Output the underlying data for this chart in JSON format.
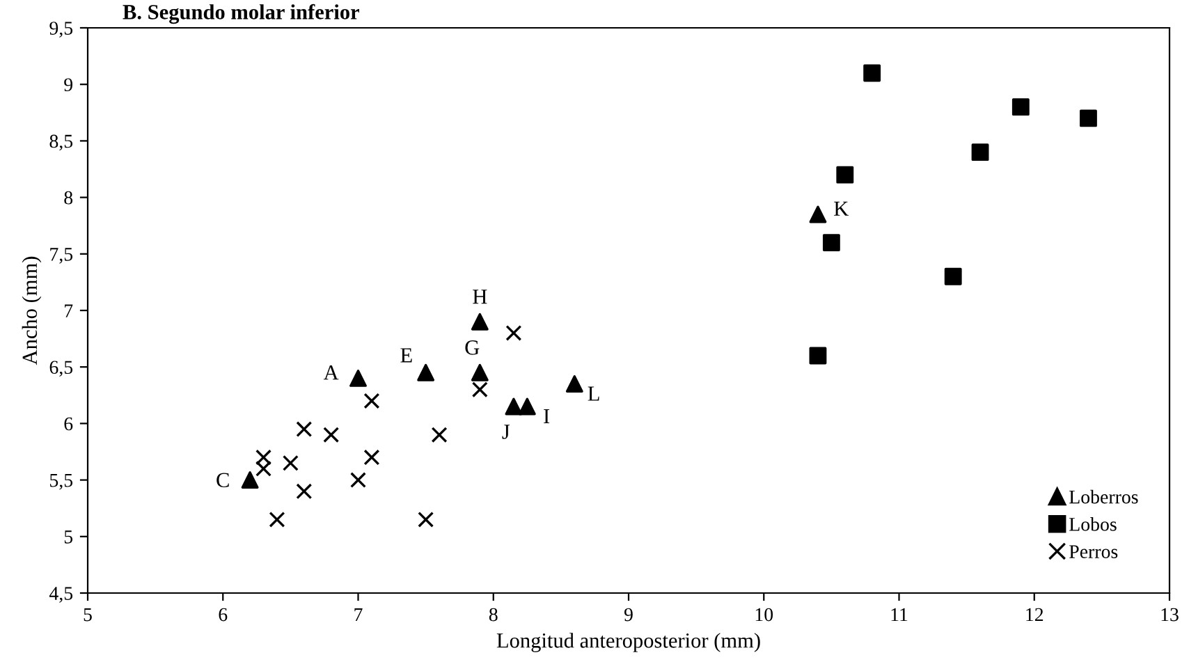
{
  "chart_data": {
    "type": "scatter",
    "title": "B. Segundo molar inferior",
    "xlabel": "Longitud anteroposterior (mm)",
    "ylabel": "Ancho (mm)",
    "xlim": [
      5,
      13
    ],
    "xticks": [
      5,
      6,
      7,
      8,
      9,
      10,
      11,
      12,
      13
    ],
    "ylim": [
      4.5,
      9.5
    ],
    "yticks": [
      {
        "value": 4.5,
        "label": "4,5"
      },
      5,
      {
        "value": 5.5,
        "label": "5,5"
      },
      6,
      {
        "value": 6.5,
        "label": "6,5"
      },
      7,
      {
        "value": 7.5,
        "label": "7,5"
      },
      8,
      {
        "value": 8.5,
        "label": "8,5"
      },
      9,
      {
        "value": 9.5,
        "label": "9,5"
      }
    ],
    "grid": false,
    "legend": "bottom right",
    "series": [
      {
        "name": "Loberros",
        "color": "#000000",
        "marker": "triangle",
        "x": [
          7.0,
          6.2,
          7.5,
          7.9,
          7.9,
          8.25,
          8.15,
          10.4,
          8.6
        ],
        "values": [
          6.4,
          5.5,
          6.45,
          6.45,
          6.9,
          6.15,
          6.15,
          7.85,
          6.35
        ]
      },
      {
        "name": "Lobos",
        "color": "#000000",
        "marker": "square",
        "x": [
          10.8,
          11.9,
          12.4,
          11.6,
          10.6,
          10.5,
          11.4,
          10.4
        ],
        "values": [
          9.1,
          8.8,
          8.7,
          8.4,
          8.2,
          7.6,
          7.3,
          6.6
        ]
      },
      {
        "name": "Perros",
        "color": "#000000",
        "marker": "cross",
        "x": [
          6.3,
          6.3,
          6.5,
          6.6,
          6.8,
          6.6,
          6.4,
          7.0,
          7.1,
          7.1,
          7.6,
          7.5,
          7.9,
          8.15
        ],
        "values": [
          5.7,
          5.6,
          5.65,
          5.95,
          5.9,
          5.4,
          5.15,
          5.5,
          5.7,
          6.2,
          5.9,
          5.15,
          6.3,
          6.8
        ]
      }
    ],
    "annotations": [
      {
        "text": "A",
        "x": 7.0,
        "y": 6.4
      },
      {
        "text": "C",
        "x": 6.2,
        "y": 5.5
      },
      {
        "text": "E",
        "x": 7.5,
        "y": 6.45
      },
      {
        "text": "G",
        "x": 7.9,
        "y": 6.45
      },
      {
        "text": "H",
        "x": 7.9,
        "y": 6.9
      },
      {
        "text": "I",
        "x": 8.25,
        "y": 6.15
      },
      {
        "text": "J",
        "x": 8.15,
        "y": 6.15
      },
      {
        "text": "K",
        "x": 10.4,
        "y": 7.85
      },
      {
        "text": "L",
        "x": 8.6,
        "y": 6.35
      }
    ]
  }
}
